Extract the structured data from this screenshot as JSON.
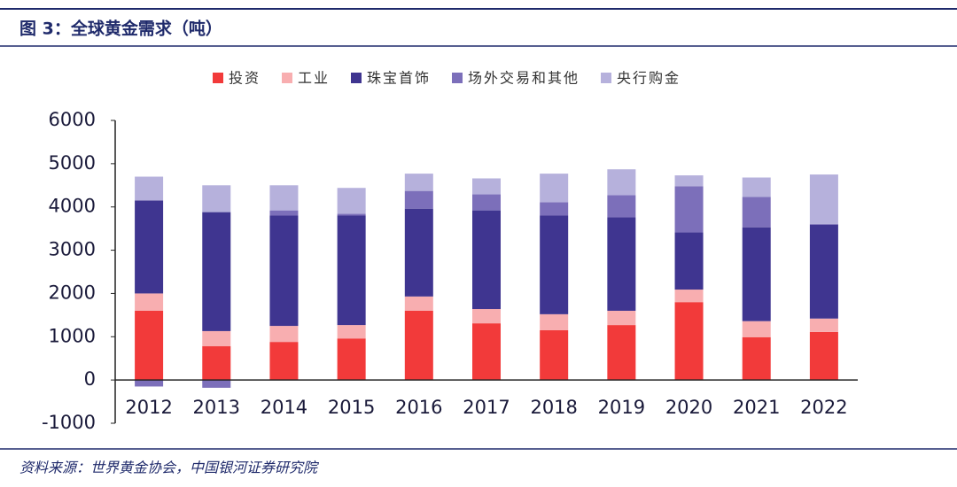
{
  "chart_data": {
    "type": "stacked-bar",
    "title": "图 3：全球黄金需求（吨）",
    "source": "资料来源：世界黄金协会，中国银河证券研究院",
    "categories": [
      "2012",
      "2013",
      "2014",
      "2015",
      "2016",
      "2017",
      "2018",
      "2019",
      "2020",
      "2021",
      "2022"
    ],
    "series": [
      {
        "name": "投资",
        "color": "#f23a3a",
        "values": [
          1600,
          780,
          880,
          960,
          1600,
          1310,
          1150,
          1270,
          1800,
          990,
          1110
        ]
      },
      {
        "name": "工业",
        "color": "#f8aeb0",
        "values": [
          400,
          350,
          370,
          310,
          330,
          330,
          370,
          330,
          290,
          370,
          310
        ]
      },
      {
        "name": "珠宝首饰",
        "color": "#3f3590",
        "values": [
          2150,
          2750,
          2550,
          2530,
          2030,
          2280,
          2280,
          2160,
          1320,
          2170,
          2170
        ]
      },
      {
        "name": "场外交易和其他",
        "color": "#7c6fba",
        "values": [
          -150,
          -180,
          120,
          40,
          410,
          370,
          310,
          510,
          1070,
          700,
          20
        ]
      },
      {
        "name": "央行购金",
        "color": "#b6b1dc",
        "values": [
          550,
          620,
          580,
          600,
          400,
          370,
          660,
          600,
          250,
          450,
          1140
        ]
      }
    ],
    "ylim": [
      -1000,
      6000
    ],
    "yticks": [
      -1000,
      0,
      1000,
      2000,
      3000,
      4000,
      5000,
      6000
    ],
    "legend": "top"
  }
}
